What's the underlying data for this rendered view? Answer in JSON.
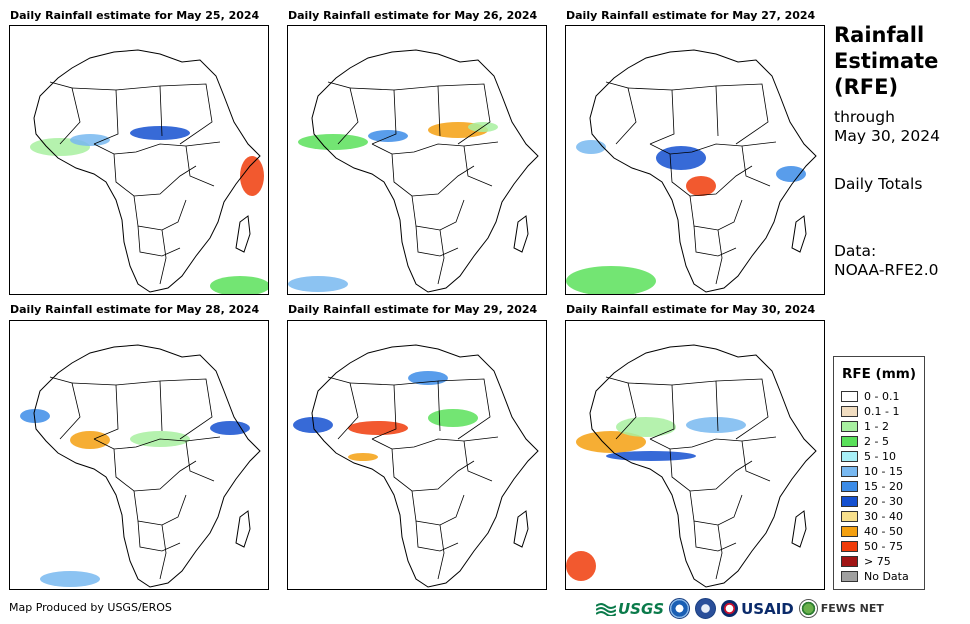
{
  "panels": [
    {
      "title": "Daily Rainfall estimate for May 25, 2024"
    },
    {
      "title": "Daily Rainfall estimate for May 26, 2024"
    },
    {
      "title": "Daily Rainfall estimate for May 27, 2024"
    },
    {
      "title": "Daily Rainfall estimate for May 28, 2024"
    },
    {
      "title": "Daily Rainfall estimate for May 29, 2024"
    },
    {
      "title": "Daily Rainfall estimate for May 30, 2024"
    }
  ],
  "sidebar": {
    "title": "Rainfall Estimate (RFE)",
    "through_label": "through",
    "through_date": "May 30, 2024",
    "totals": "Daily Totals",
    "data_label": "Data:",
    "data_source": "NOAA-RFE2.0"
  },
  "legend": {
    "title": "RFE (mm)",
    "items": [
      {
        "label": "0 - 0.1",
        "color": "#ffffff"
      },
      {
        "label": "0.1 - 1",
        "color": "#f0dcc0"
      },
      {
        "label": "1 - 2",
        "color": "#a8f0a0"
      },
      {
        "label": "2 - 5",
        "color": "#5ae05a"
      },
      {
        "label": "5 - 10",
        "color": "#a8f0f8"
      },
      {
        "label": "10 - 15",
        "color": "#78b8f0"
      },
      {
        "label": "15 - 20",
        "color": "#3c8ce8"
      },
      {
        "label": "20 - 30",
        "color": "#1450d0"
      },
      {
        "label": "30 - 40",
        "color": "#f8e08c"
      },
      {
        "label": "40 - 50",
        "color": "#f4a010"
      },
      {
        "label": "50 - 75",
        "color": "#f03c0a"
      },
      {
        "label": "> 75",
        "color": "#a01414"
      },
      {
        "label": "No Data",
        "color": "#a0a0a0"
      }
    ]
  },
  "footer": {
    "credit": "Map Produced by USGS/EROS"
  },
  "logos": {
    "usgs": "USGS",
    "usaid": "USAID",
    "fews": "FEWS NET"
  }
}
